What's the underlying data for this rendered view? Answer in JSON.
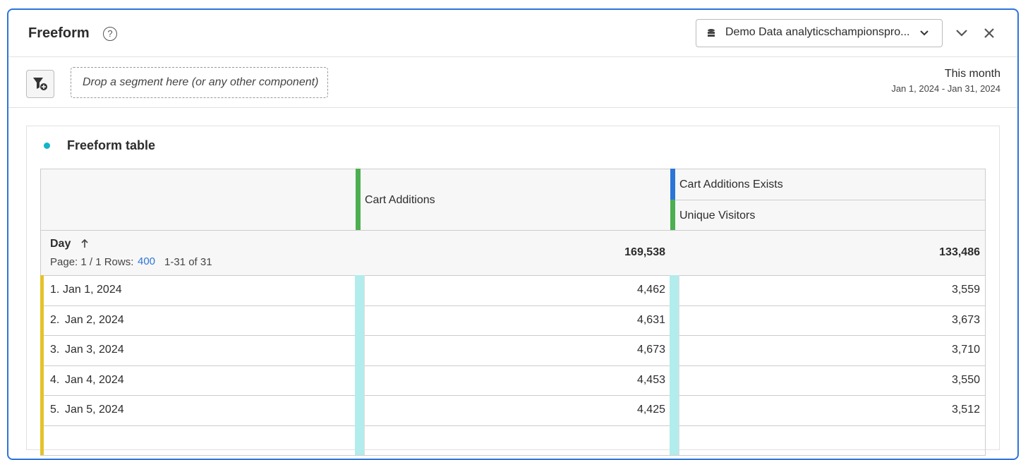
{
  "header": {
    "title": "Freeform",
    "data_view": "Demo Data analyticschampionspro..."
  },
  "segment_bar": {
    "drop_zone": "Drop a segment here (or any other component)",
    "date_range_label": "This month",
    "date_range": "Jan 1, 2024 - Jan 31, 2024"
  },
  "table": {
    "title": "Freeform table",
    "columns": [
      "Cart Additions",
      "Cart Additions Exists",
      "Unique Visitors"
    ],
    "dimension": "Day",
    "pagination": {
      "page": "Page: 1 / 1 Rows:",
      "rows": "400",
      "range": "1-31 of 31"
    },
    "totals": [
      "169,538",
      "133,486"
    ],
    "rows": [
      [
        "1.",
        "Jan 1, 2024",
        "4,462",
        "3,559"
      ],
      [
        "2.",
        "Jan 2, 2024",
        "4,631",
        "3,673"
      ],
      [
        "3.",
        "Jan 3, 2024",
        "4,673",
        "3,710"
      ],
      [
        "4.",
        "Jan 4, 2024",
        "4,453",
        "3,550"
      ],
      [
        "5.",
        "Jan 5, 2024",
        "4,425",
        "3,512"
      ]
    ]
  }
}
